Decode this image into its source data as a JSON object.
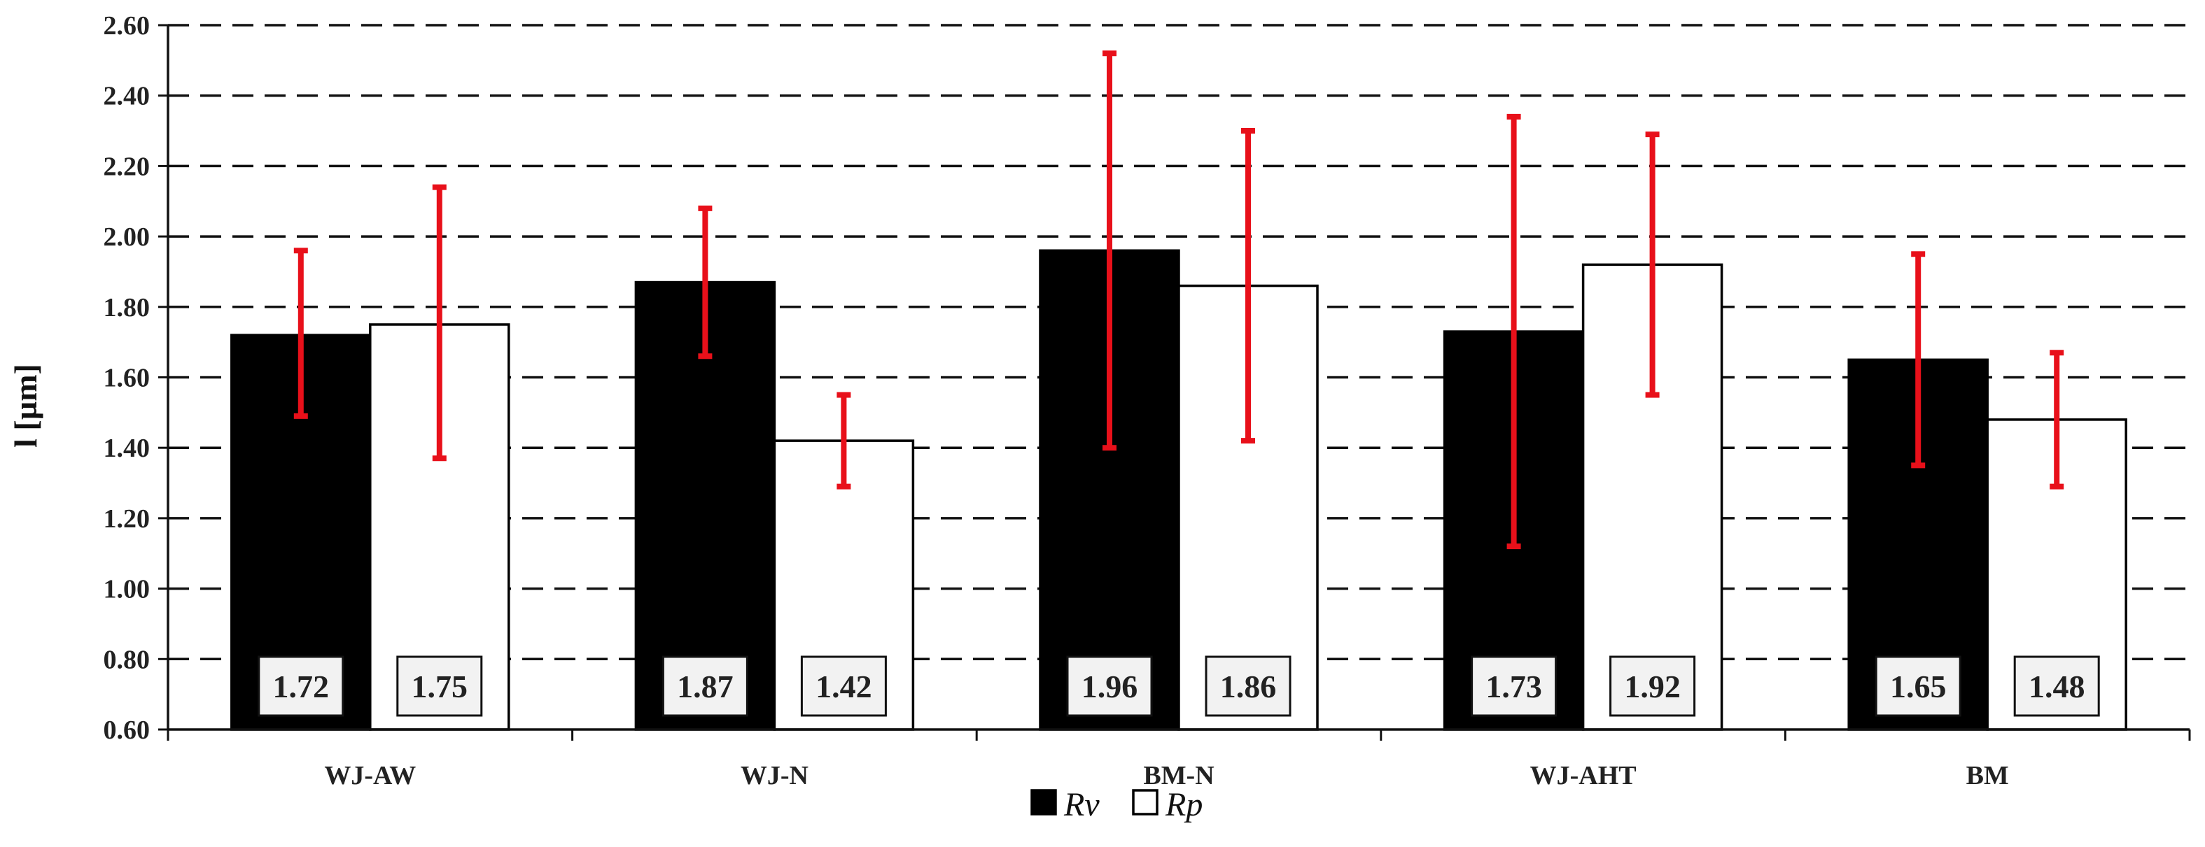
{
  "chart_data": {
    "type": "bar",
    "title": "",
    "xlabel": "",
    "ylabel": "l [µm]",
    "ylim": [
      0.6,
      2.6
    ],
    "ytick_step": 0.2,
    "ytick_labels": [
      "0.60",
      "0.80",
      "1.00",
      "1.20",
      "1.40",
      "1.60",
      "1.80",
      "2.00",
      "2.20",
      "2.40",
      "2.60"
    ],
    "grid": "horizontal-dashed",
    "legend_position": "bottom-center",
    "categories": [
      "WJ-AW",
      "WJ-N",
      "BM-N",
      "WJ-AHT",
      "BM"
    ],
    "series": [
      {
        "name": "Rv",
        "color": "#000000",
        "values": [
          1.72,
          1.87,
          1.96,
          1.73,
          1.65
        ],
        "error_low": [
          1.49,
          1.66,
          1.4,
          1.12,
          1.35
        ],
        "error_high": [
          1.96,
          2.08,
          2.52,
          2.34,
          1.95
        ]
      },
      {
        "name": "Rp",
        "color": "#ffffff",
        "values": [
          1.75,
          1.42,
          1.86,
          1.92,
          1.48
        ],
        "error_low": [
          1.37,
          1.29,
          1.42,
          1.55,
          1.29
        ],
        "error_high": [
          2.14,
          1.55,
          2.3,
          2.29,
          1.67
        ]
      }
    ],
    "data_labels": [
      [
        "1.72",
        "1.75"
      ],
      [
        "1.87",
        "1.42"
      ],
      [
        "1.96",
        "1.86"
      ],
      [
        "1.73",
        "1.92"
      ],
      [
        "1.65",
        "1.48"
      ]
    ],
    "error_bar_color": "#e8101a"
  }
}
